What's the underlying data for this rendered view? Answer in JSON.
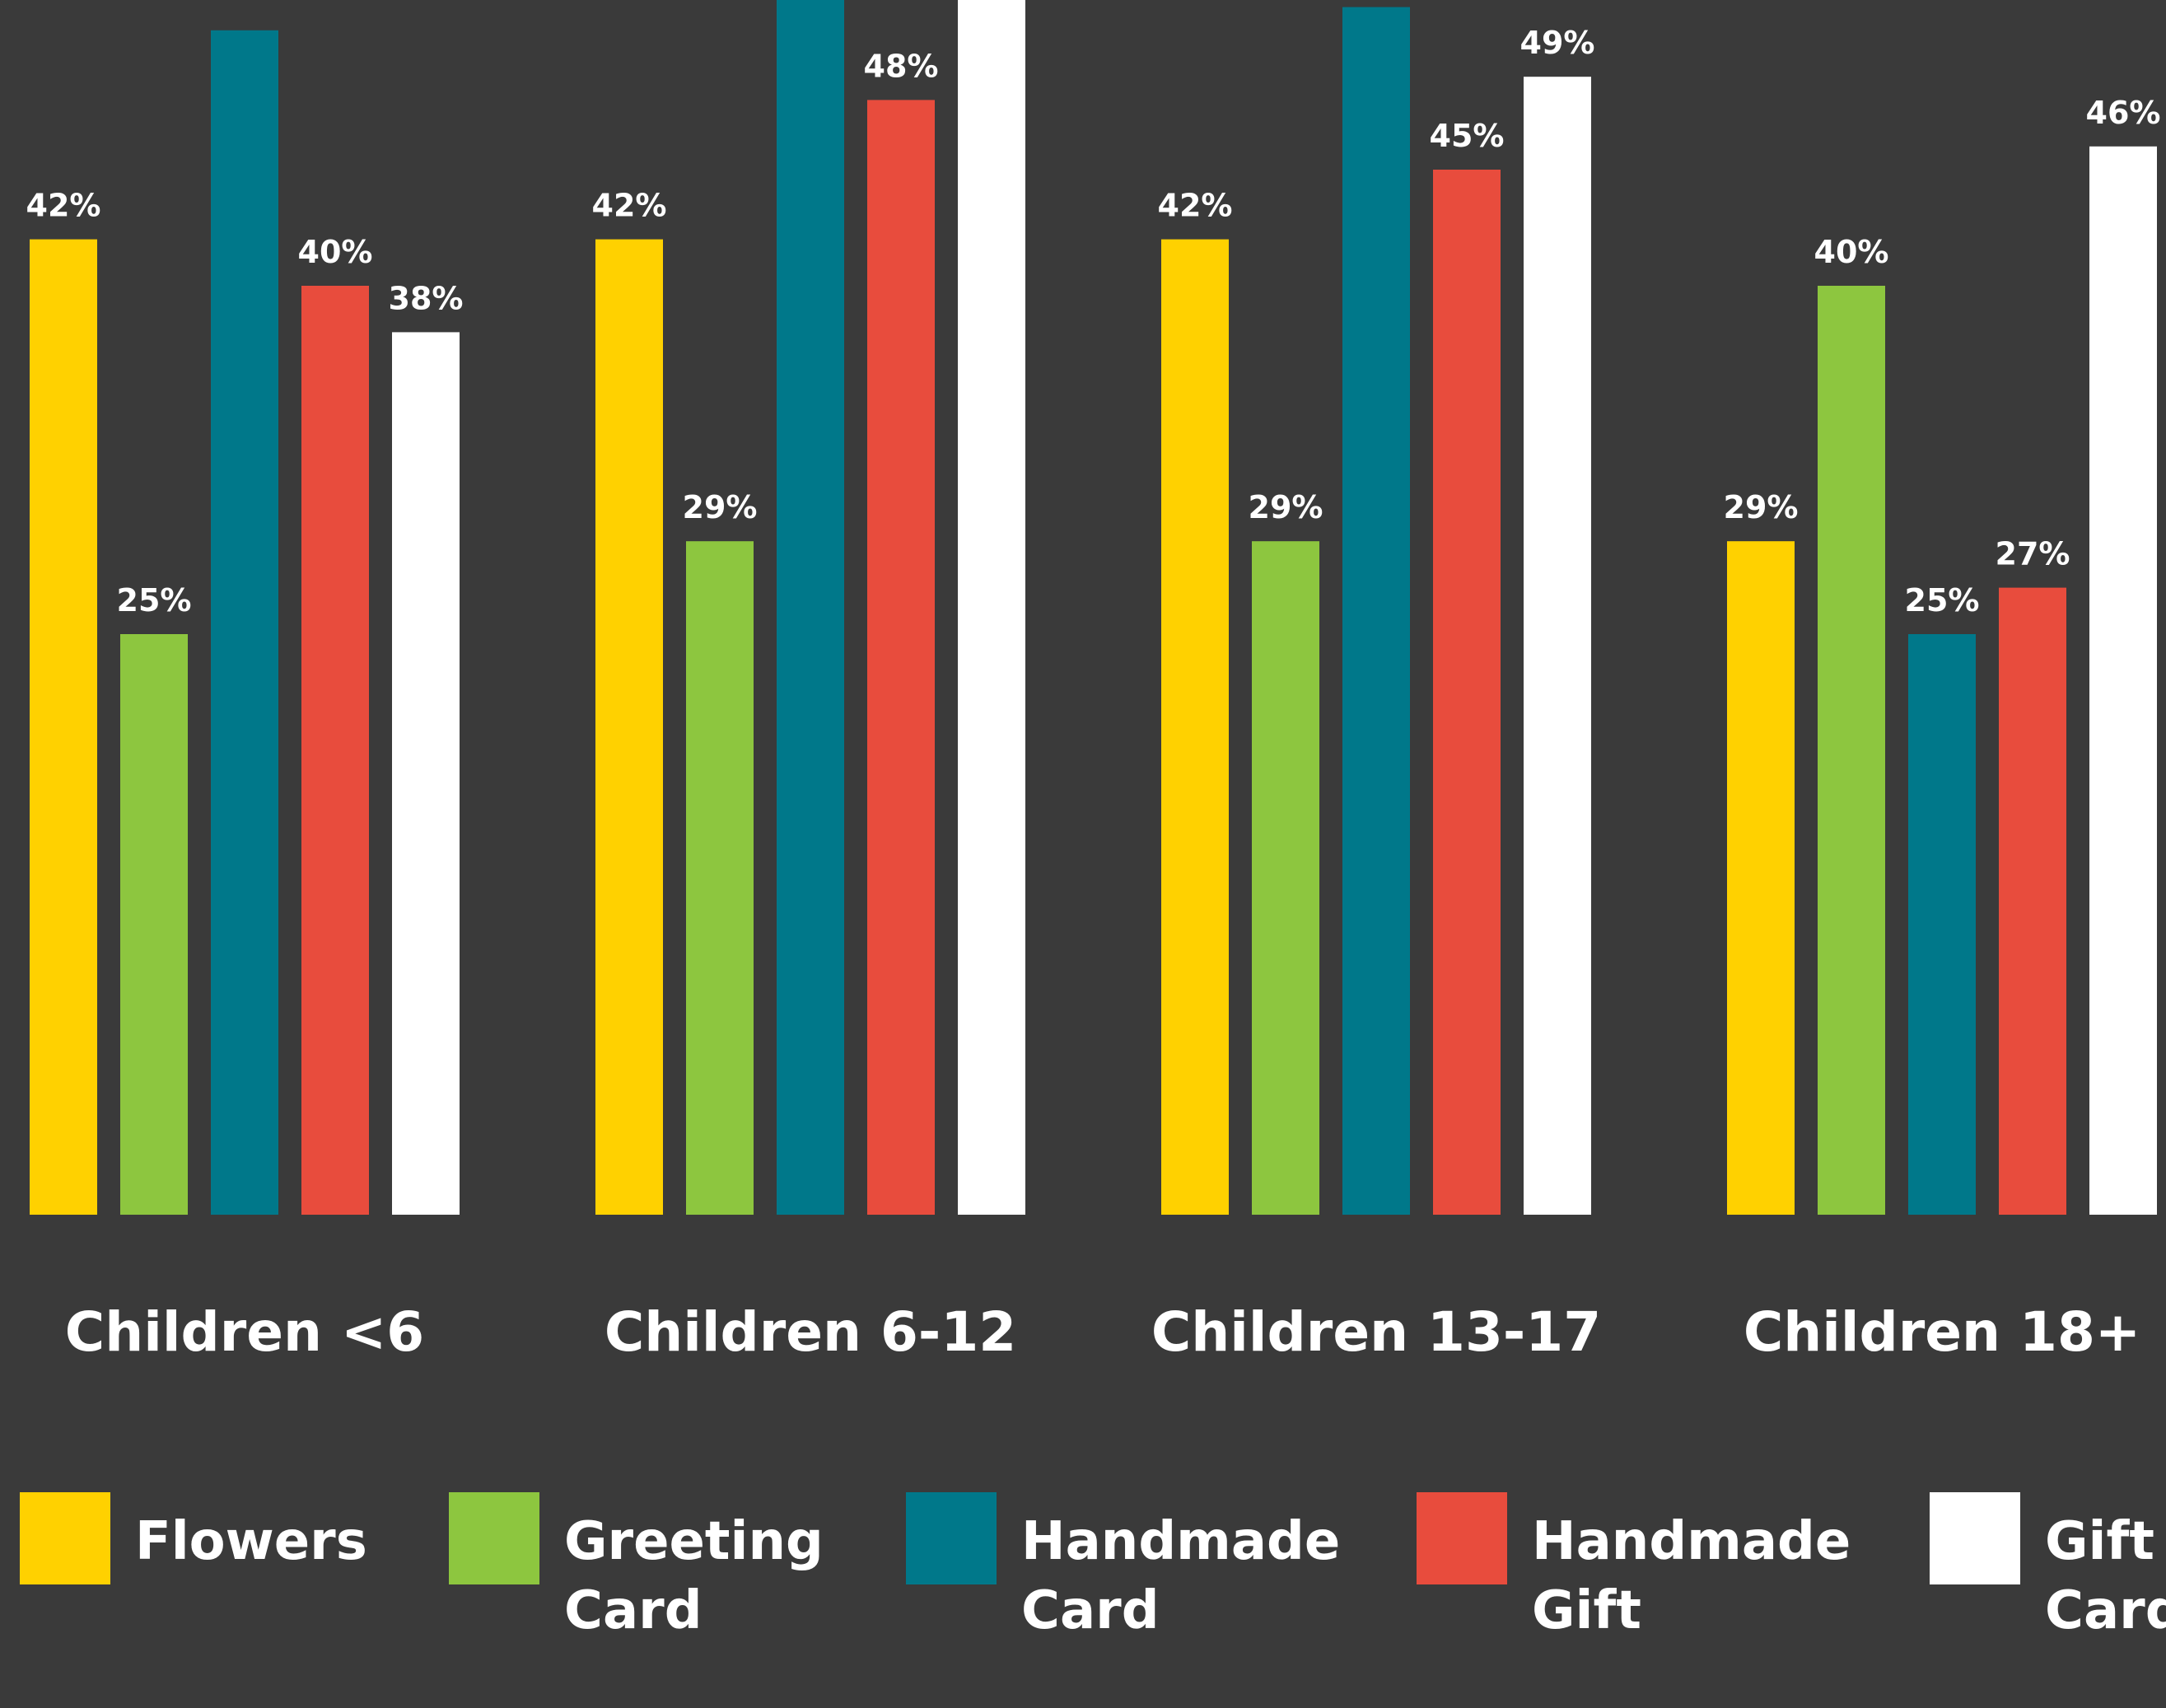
{
  "chart_data": {
    "type": "bar",
    "categories": [
      "Children <6",
      "Children 6-12",
      "Children 13-17",
      "Children 18+"
    ],
    "series": [
      {
        "name": "Flowers",
        "color": "#ffd100",
        "values": [
          42,
          42,
          42,
          29
        ],
        "labels": [
          "42%",
          "42%",
          "42%",
          "29%"
        ]
      },
      {
        "name": "Greeting Card",
        "color": "#8dc63f",
        "values": [
          25,
          29,
          29,
          40
        ],
        "labels": [
          "25%",
          "29%",
          "29%",
          "40%"
        ]
      },
      {
        "name": "Handmade Card",
        "color": "#00788a",
        "values": [
          51,
          54,
          52,
          25
        ],
        "labels": [
          "",
          "",
          "",
          "25%"
        ]
      },
      {
        "name": "Handmade Gift",
        "color": "#e84c3d",
        "values": [
          40,
          48,
          45,
          27
        ],
        "labels": [
          "40%",
          "48%",
          "45%",
          "27%"
        ]
      },
      {
        "name": "Gift Card",
        "color": "#ffffff",
        "values": [
          38,
          54,
          49,
          46
        ],
        "labels": [
          "38%",
          "",
          "49%",
          "46%"
        ]
      }
    ],
    "legend": [
      {
        "lines": [
          "Flowers"
        ],
        "color": "#ffd100"
      },
      {
        "lines": [
          "Greeting",
          "Card"
        ],
        "color": "#8dc63f"
      },
      {
        "lines": [
          "Handmade",
          "Card"
        ],
        "color": "#00788a"
      },
      {
        "lines": [
          "Handmade",
          "Gift"
        ],
        "color": "#e84c3d"
      },
      {
        "lines": [
          "Gift",
          "Card"
        ],
        "color": "#ffffff"
      }
    ],
    "legend_position": "bottom",
    "grid": false,
    "ylim": [
      0,
      54
    ]
  }
}
